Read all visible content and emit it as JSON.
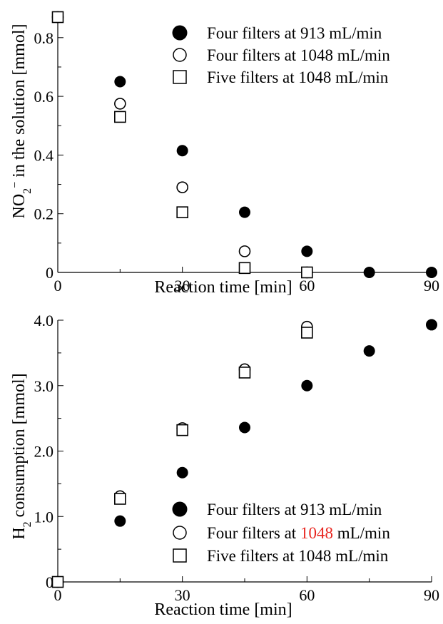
{
  "chart_data": [
    {
      "type": "scatter",
      "xlabel": "Reaction time [min]",
      "ylabel": {
        "parts": [
          {
            "t": "NO"
          },
          {
            "t": "2",
            "sub": true
          },
          {
            "t": "−",
            "sup": true
          },
          {
            "t": " in the solution [mmol]"
          }
        ]
      },
      "xlim": [
        0,
        90
      ],
      "ylim": [
        0,
        0.87
      ],
      "xticks": [
        0,
        30,
        60,
        90
      ],
      "xtick_labels": [
        "0",
        "30",
        "60",
        "90"
      ],
      "yticks": [
        0,
        0.2,
        0.4,
        0.6,
        0.8
      ],
      "ytick_labels": [
        "0",
        "0.2",
        "0.4",
        "0.6",
        "0.8"
      ],
      "legend_position": "top-right",
      "series": [
        {
          "name": "Four filters at 913 mL/min",
          "marker": "filled-circle",
          "x": [
            0,
            15,
            30,
            45,
            60,
            75,
            90
          ],
          "y": [
            0.87,
            0.65,
            0.415,
            0.205,
            0.072,
            0.0,
            0.0
          ]
        },
        {
          "name": "Four filters at 1048 mL/min",
          "marker": "open-circle",
          "x": [
            0,
            15,
            30,
            45,
            60
          ],
          "y": [
            0.87,
            0.575,
            0.29,
            0.072,
            0.0
          ]
        },
        {
          "name": "Five filters at 1048 mL/min",
          "marker": "open-square",
          "x": [
            0,
            15,
            30,
            45,
            60
          ],
          "y": [
            0.87,
            0.53,
            0.205,
            0.015,
            0.0
          ]
        }
      ]
    },
    {
      "type": "scatter",
      "xlabel": "Reaction time [min]",
      "ylabel": {
        "parts": [
          {
            "t": "H"
          },
          {
            "t": "2",
            "sub": true
          },
          {
            "t": " consumption [mmol]"
          }
        ]
      },
      "xlim": [
        0,
        90
      ],
      "ylim": [
        0,
        4.0
      ],
      "xticks": [
        0,
        30,
        60,
        90
      ],
      "xtick_labels": [
        "0",
        "30",
        "60",
        "90"
      ],
      "yticks": [
        0,
        1,
        2,
        3,
        4
      ],
      "ytick_labels": [
        "0",
        "1.0",
        "2.0",
        "3.0",
        "4.0"
      ],
      "legend_position": "bottom-right",
      "legend_highlight": {
        "series": 1,
        "text": "1048",
        "color": "#e8251f"
      },
      "series": [
        {
          "name": "Four filters at 913 mL/min",
          "marker": "filled-circle",
          "x": [
            0,
            15,
            30,
            45,
            60,
            75,
            90
          ],
          "y": [
            0,
            0.93,
            1.67,
            2.36,
            3.0,
            3.53,
            3.93
          ]
        },
        {
          "name": "Four filters at 1048 mL/min",
          "marker": "open-circle",
          "x": [
            0,
            15,
            30,
            45,
            60
          ],
          "y": [
            0,
            1.31,
            2.35,
            3.25,
            3.9
          ]
        },
        {
          "name": "Five filters at 1048 mL/min",
          "marker": "open-square",
          "x": [
            0,
            15,
            30,
            45,
            60
          ],
          "y": [
            0,
            1.27,
            2.32,
            3.2,
            3.81
          ]
        }
      ]
    }
  ]
}
